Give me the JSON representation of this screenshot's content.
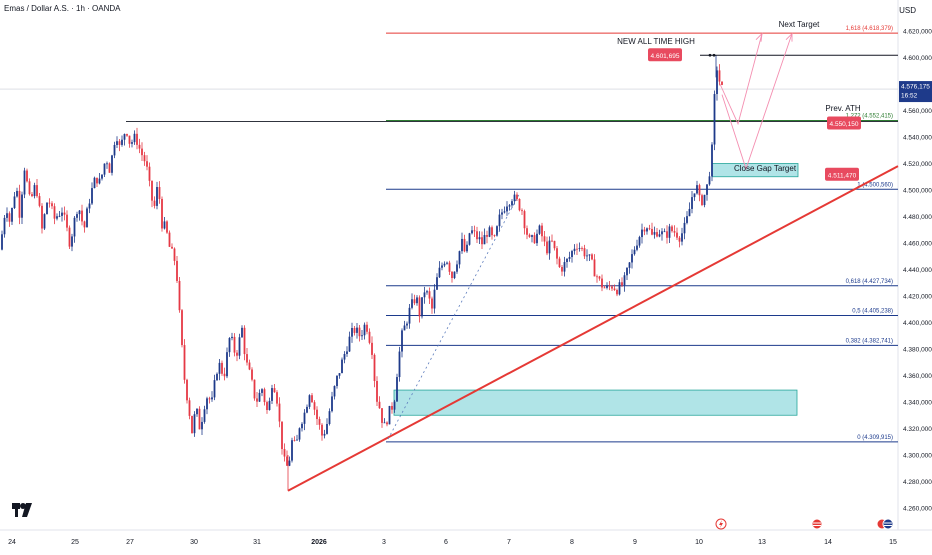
{
  "header": {
    "title": "Emas / Dollar A.S. · 1h · OANDA",
    "currency": "USD"
  },
  "chart_data": {
    "type": "candlestick",
    "ylim": [
      4250000,
      4630000
    ],
    "y_ticks": [
      {
        "v": 4620000,
        "label": "4.620,000"
      },
      {
        "v": 4600000,
        "label": "4.600,000"
      },
      {
        "v": 4580000,
        "label": "4.580,000"
      },
      {
        "v": 4560000,
        "label": "4.560,000"
      },
      {
        "v": 4540000,
        "label": "4.540,000"
      },
      {
        "v": 4520000,
        "label": "4.520,000"
      },
      {
        "v": 4500000,
        "label": "4.500,000"
      },
      {
        "v": 4480000,
        "label": "4.480,000"
      },
      {
        "v": 4460000,
        "label": "4.460,000"
      },
      {
        "v": 4440000,
        "label": "4.440,000"
      },
      {
        "v": 4420000,
        "label": "4.420,000"
      },
      {
        "v": 4400000,
        "label": "4.400,000"
      },
      {
        "v": 4380000,
        "label": "4.380,000"
      },
      {
        "v": 4360000,
        "label": "4.360,000"
      },
      {
        "v": 4340000,
        "label": "4.340,000"
      },
      {
        "v": 4320000,
        "label": "4.320,000"
      },
      {
        "v": 4300000,
        "label": "4.300,000"
      },
      {
        "v": 4280000,
        "label": "4.280,000"
      },
      {
        "v": 4260000,
        "label": "4.260,000"
      }
    ],
    "x_ticks": [
      {
        "label": "24",
        "bold": false
      },
      {
        "label": "25",
        "bold": false
      },
      {
        "label": "27",
        "bold": false
      },
      {
        "label": "30",
        "bold": false
      },
      {
        "label": "31",
        "bold": false
      },
      {
        "label": "2026",
        "bold": true
      },
      {
        "label": "3",
        "bold": false
      },
      {
        "label": "6",
        "bold": false
      },
      {
        "label": "7",
        "bold": false
      },
      {
        "label": "8",
        "bold": false
      },
      {
        "label": "9",
        "bold": false
      },
      {
        "label": "10",
        "bold": false
      },
      {
        "label": "13",
        "bold": false
      },
      {
        "label": "14",
        "bold": false
      },
      {
        "label": "15",
        "bold": false
      }
    ],
    "path": [
      [
        0,
        4455000
      ],
      [
        6,
        4490000
      ],
      [
        10,
        4475000
      ],
      [
        16,
        4505000
      ],
      [
        20,
        4480000
      ],
      [
        24,
        4520000
      ],
      [
        30,
        4490000
      ],
      [
        36,
        4505000
      ],
      [
        42,
        4470000
      ],
      [
        48,
        4495000
      ],
      [
        54,
        4478000
      ],
      [
        62,
        4485000
      ],
      [
        70,
        4460000
      ],
      [
        78,
        4490000
      ],
      [
        84,
        4470000
      ],
      [
        90,
        4495000
      ],
      [
        96,
        4510000
      ],
      [
        100,
        4505000
      ],
      [
        106,
        4525000
      ],
      [
        110,
        4515000
      ],
      [
        116,
        4545000
      ],
      [
        120,
        4530000
      ],
      [
        126,
        4548000
      ],
      [
        130,
        4535000
      ],
      [
        136,
        4540000
      ],
      [
        140,
        4530000
      ],
      [
        146,
        4520000
      ],
      [
        150,
        4500000
      ],
      [
        154,
        4485000
      ],
      [
        158,
        4505000
      ],
      [
        162,
        4475000
      ],
      [
        166,
        4470000
      ],
      [
        170,
        4455000
      ],
      [
        176,
        4445000
      ],
      [
        180,
        4400000
      ],
      [
        184,
        4360000
      ],
      [
        188,
        4340000
      ],
      [
        192,
        4318000
      ],
      [
        196,
        4335000
      ],
      [
        200,
        4320000
      ],
      [
        206,
        4345000
      ],
      [
        212,
        4340000
      ],
      [
        218,
        4370000
      ],
      [
        224,
        4360000
      ],
      [
        230,
        4390000
      ],
      [
        236,
        4375000
      ],
      [
        242,
        4395000
      ],
      [
        246,
        4370000
      ],
      [
        250,
        4360000
      ],
      [
        256,
        4340000
      ],
      [
        262,
        4350000
      ],
      [
        268,
        4330000
      ],
      [
        272,
        4355000
      ],
      [
        276,
        4350000
      ],
      [
        280,
        4320000
      ],
      [
        284,
        4295000
      ],
      [
        288,
        4290000
      ],
      [
        292,
        4310000
      ],
      [
        296,
        4305000
      ],
      [
        300,
        4325000
      ],
      [
        304,
        4330000
      ],
      [
        310,
        4350000
      ],
      [
        316,
        4330000
      ],
      [
        322,
        4315000
      ],
      [
        326,
        4320000
      ],
      [
        330,
        4335000
      ],
      [
        336,
        4355000
      ],
      [
        342,
        4370000
      ],
      [
        348,
        4385000
      ],
      [
        354,
        4395000
      ],
      [
        360,
        4390000
      ],
      [
        366,
        4400000
      ],
      [
        372,
        4380000
      ],
      [
        376,
        4345000
      ],
      [
        380,
        4335000
      ],
      [
        384,
        4320000
      ],
      [
        388,
        4330000
      ],
      [
        394,
        4340000
      ],
      [
        398,
        4370000
      ],
      [
        402,
        4390000
      ],
      [
        406,
        4400000
      ],
      [
        410,
        4410000
      ],
      [
        416,
        4420000
      ],
      [
        420,
        4405000
      ],
      [
        424,
        4425000
      ],
      [
        428,
        4420000
      ],
      [
        432,
        4410000
      ],
      [
        436,
        4430000
      ],
      [
        440,
        4440000
      ],
      [
        446,
        4450000
      ],
      [
        452,
        4435000
      ],
      [
        456,
        4445000
      ],
      [
        462,
        4460000
      ],
      [
        466,
        4450000
      ],
      [
        470,
        4470000
      ],
      [
        476,
        4465000
      ],
      [
        482,
        4460000
      ],
      [
        488,
        4470000
      ],
      [
        494,
        4460000
      ],
      [
        500,
        4480000
      ],
      [
        506,
        4490000
      ],
      [
        512,
        4495000
      ],
      [
        518,
        4490000
      ],
      [
        522,
        4485000
      ],
      [
        526,
        4470000
      ],
      [
        530,
        4460000
      ],
      [
        536,
        4465000
      ],
      [
        540,
        4470000
      ],
      [
        546,
        4455000
      ],
      [
        552,
        4460000
      ],
      [
        556,
        4450000
      ],
      [
        560,
        4440000
      ],
      [
        566,
        4445000
      ],
      [
        570,
        4450000
      ],
      [
        576,
        4460000
      ],
      [
        582,
        4455000
      ],
      [
        588,
        4450000
      ],
      [
        594,
        4440000
      ],
      [
        600,
        4430000
      ],
      [
        606,
        4425000
      ],
      [
        612,
        4428000
      ],
      [
        618,
        4425000
      ],
      [
        624,
        4430000
      ],
      [
        630,
        4445000
      ],
      [
        636,
        4460000
      ],
      [
        642,
        4470000
      ],
      [
        646,
        4475000
      ],
      [
        652,
        4465000
      ],
      [
        658,
        4470000
      ],
      [
        664,
        4465000
      ],
      [
        670,
        4470000
      ],
      [
        676,
        4468000
      ],
      [
        680,
        4465000
      ],
      [
        684,
        4470000
      ],
      [
        688,
        4480000
      ],
      [
        692,
        4495000
      ],
      [
        696,
        4505000
      ],
      [
        700,
        4490000
      ],
      [
        704,
        4495000
      ],
      [
        708,
        4505000
      ],
      [
        712,
        4530000
      ],
      [
        714,
        4560000
      ],
      [
        716,
        4595000
      ],
      [
        718,
        4590000
      ],
      [
        720,
        4580000
      ],
      [
        722,
        4576175
      ]
    ],
    "levels": [
      {
        "name": "fib-0-618",
        "v": 4427734,
        "x1": 386,
        "label": "0,618 (4.427,734)",
        "color": "#1c3a8c"
      },
      {
        "name": "fib-0-5",
        "v": 4405238,
        "x1": 386,
        "label": "0,5 (4.405,238)",
        "color": "#1c3a8c"
      },
      {
        "name": "fib-0-382",
        "v": 4382741,
        "x1": 386,
        "label": "0,382 (4.382,741)",
        "color": "#1c3a8c"
      },
      {
        "name": "fib-0",
        "v": 4309915,
        "x1": 386,
        "label": "0 (4.309,915)",
        "color": "#1c3a8c"
      },
      {
        "name": "fib-1",
        "v": 4500560,
        "x1": 386,
        "label": "1 (4.500,560)",
        "color": "#1c3a8c"
      },
      {
        "name": "fib-1-272",
        "v": 4552415,
        "x1": 386,
        "label": "1,272 (4.552,415)",
        "color": "#2e7d32"
      },
      {
        "name": "fib-1-618",
        "v": 4618379,
        "x1": 386,
        "label": "1,618 (4.618,379)",
        "color": "#e53935"
      }
    ],
    "prev_ath_line": {
      "v": 4550150,
      "x1": 126
    },
    "price_badges": [
      {
        "name": "ath-badge",
        "v": 4601695,
        "x": 648,
        "label": "4.601,695",
        "color": "#e84a5f"
      },
      {
        "name": "prev-ath-badge",
        "v": 4550150,
        "x": 827,
        "label": "4.550,150",
        "color": "#e84a5f"
      },
      {
        "name": "gap-badge",
        "v": 4511470,
        "x": 825,
        "label": "4.511,470",
        "color": "#e84a5f"
      }
    ],
    "current_price": {
      "v": 4576175,
      "label": "4.576,175",
      "countdown": "16:52",
      "color": "#1e3a8a"
    },
    "annotations": [
      {
        "name": "new-ath-label",
        "text": "NEW ALL TIME HIGH"
      },
      {
        "name": "next-target-label",
        "text": "Next Target"
      },
      {
        "name": "prev-ath-label",
        "text": "Prev. ATH"
      },
      {
        "name": "close-gap-label",
        "text": "Close Gap Target"
      }
    ]
  }
}
